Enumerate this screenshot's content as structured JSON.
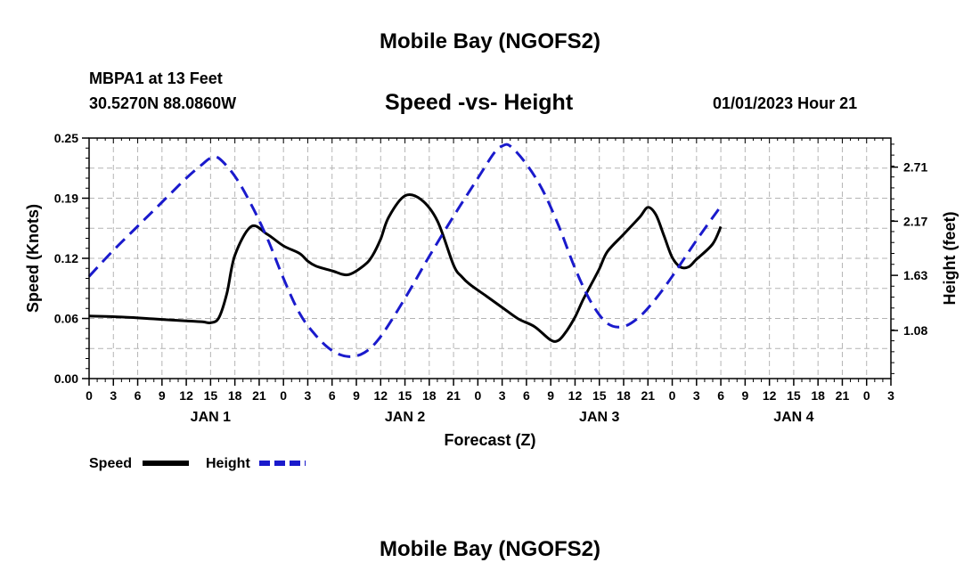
{
  "page": {
    "title": "Mobile Bay (NGOFS2)",
    "footer_title": "Mobile Bay (NGOFS2)",
    "station": "MBPA1 at 13 Feet",
    "coordinates": "30.5270N  88.0860W",
    "subtitle": "Speed -vs- Height",
    "datetime": "01/01/2023 Hour 21"
  },
  "colors": {
    "speed": "#000000",
    "height": "#1a1acc",
    "grid": "#b4b4b4"
  },
  "chart_data": {
    "type": "line",
    "title": "Speed -vs- Height",
    "xlabel": "Forecast (Z)",
    "ylabel_left": "Speed (Knots)",
    "ylabel_right": "Height (feet)",
    "x_unit": "hours from JAN 1 00Z",
    "xlim": [
      -21,
      78
    ],
    "ylim_left": [
      0,
      0.25
    ],
    "ylim_right": [
      0.6,
      3.0
    ],
    "x_ticks": [
      {
        "x": -21,
        "label": "0"
      },
      {
        "x": -18,
        "label": "3"
      },
      {
        "x": -15,
        "label": "6"
      },
      {
        "x": -12,
        "label": "9"
      },
      {
        "x": -9,
        "label": "12"
      },
      {
        "x": -6,
        "label": "15"
      },
      {
        "x": -3,
        "label": "18"
      },
      {
        "x": 0,
        "label": "21"
      },
      {
        "x": 3,
        "label": "0"
      },
      {
        "x": 6,
        "label": "3"
      },
      {
        "x": 9,
        "label": "6"
      },
      {
        "x": 12,
        "label": "9"
      },
      {
        "x": 15,
        "label": "12"
      },
      {
        "x": 18,
        "label": "15"
      },
      {
        "x": 21,
        "label": "18"
      },
      {
        "x": 24,
        "label": "21"
      },
      {
        "x": 27,
        "label": "0"
      },
      {
        "x": 30,
        "label": "3"
      },
      {
        "x": 33,
        "label": "6"
      },
      {
        "x": 36,
        "label": "9"
      },
      {
        "x": 39,
        "label": "12"
      },
      {
        "x": 42,
        "label": "15"
      },
      {
        "x": 45,
        "label": "18"
      },
      {
        "x": 48,
        "label": "21"
      },
      {
        "x": 51,
        "label": "0"
      },
      {
        "x": 54,
        "label": "3"
      },
      {
        "x": 57,
        "label": "6"
      },
      {
        "x": 60,
        "label": "9"
      },
      {
        "x": 63,
        "label": "12"
      },
      {
        "x": 66,
        "label": "15"
      },
      {
        "x": 69,
        "label": "18"
      },
      {
        "x": 72,
        "label": "21"
      },
      {
        "x": 75,
        "label": "0"
      },
      {
        "x": 78,
        "label": "3"
      }
    ],
    "day_labels": [
      {
        "x": -6,
        "label": "JAN 1"
      },
      {
        "x": 18,
        "label": "JAN 2"
      },
      {
        "x": 42,
        "label": "JAN 3"
      },
      {
        "x": 66,
        "label": "JAN 4"
      }
    ],
    "y_ticks_left": [
      "0.00",
      "0.06",
      "0.12",
      "0.19",
      "0.25"
    ],
    "y_ticks_left_values": [
      0,
      0.0625,
      0.125,
      0.1875,
      0.25
    ],
    "y_ticks_right": [
      "1.08",
      "1.63",
      "2.17",
      "2.71"
    ],
    "y_ticks_right_values": [
      1.08,
      1.63,
      2.17,
      2.71
    ],
    "legend": [
      {
        "name": "Speed",
        "style": "solid"
      },
      {
        "name": "Height",
        "style": "dashed"
      }
    ],
    "series": [
      {
        "name": "Speed",
        "axis": "left",
        "x": [
          -21,
          -17,
          -13,
          -9,
          -7,
          -6,
          -5,
          -4,
          -3,
          -1,
          1,
          3,
          5,
          6,
          7,
          9,
          11,
          13,
          14,
          15,
          16,
          18,
          20,
          22,
          24,
          25,
          26,
          28,
          30,
          32,
          34,
          36,
          37,
          38,
          39,
          40,
          41,
          42,
          43,
          45,
          47,
          48,
          49,
          50,
          51,
          52,
          53,
          54,
          56,
          57
        ],
        "y": [
          0.065,
          0.064,
          0.062,
          0.06,
          0.059,
          0.058,
          0.063,
          0.088,
          0.128,
          0.158,
          0.15,
          0.138,
          0.13,
          0.122,
          0.117,
          0.112,
          0.108,
          0.118,
          0.128,
          0.145,
          0.168,
          0.19,
          0.186,
          0.164,
          0.118,
          0.106,
          0.098,
          0.086,
          0.074,
          0.062,
          0.054,
          0.04,
          0.04,
          0.05,
          0.064,
          0.082,
          0.098,
          0.114,
          0.132,
          0.15,
          0.168,
          0.178,
          0.17,
          0.148,
          0.126,
          0.116,
          0.116,
          0.124,
          0.14,
          0.158
        ]
      },
      {
        "name": "Height",
        "axis": "right",
        "x": [
          -21,
          -18,
          -15,
          -12,
          -9,
          -7,
          -6,
          -5,
          -3,
          -1,
          1,
          3,
          5,
          7,
          9,
          11,
          13,
          15,
          18,
          21,
          24,
          27,
          29,
          30,
          31,
          33,
          35,
          37,
          39,
          41,
          43,
          45,
          47,
          49,
          51,
          54,
          57
        ],
        "y": [
          1.62,
          1.88,
          2.12,
          2.36,
          2.6,
          2.74,
          2.8,
          2.8,
          2.62,
          2.34,
          2.0,
          1.6,
          1.25,
          1.03,
          0.88,
          0.82,
          0.86,
          1.02,
          1.4,
          1.82,
          2.22,
          2.6,
          2.85,
          2.92,
          2.92,
          2.74,
          2.48,
          2.12,
          1.7,
          1.36,
          1.15,
          1.12,
          1.22,
          1.4,
          1.62,
          1.98,
          2.32
        ]
      }
    ]
  }
}
